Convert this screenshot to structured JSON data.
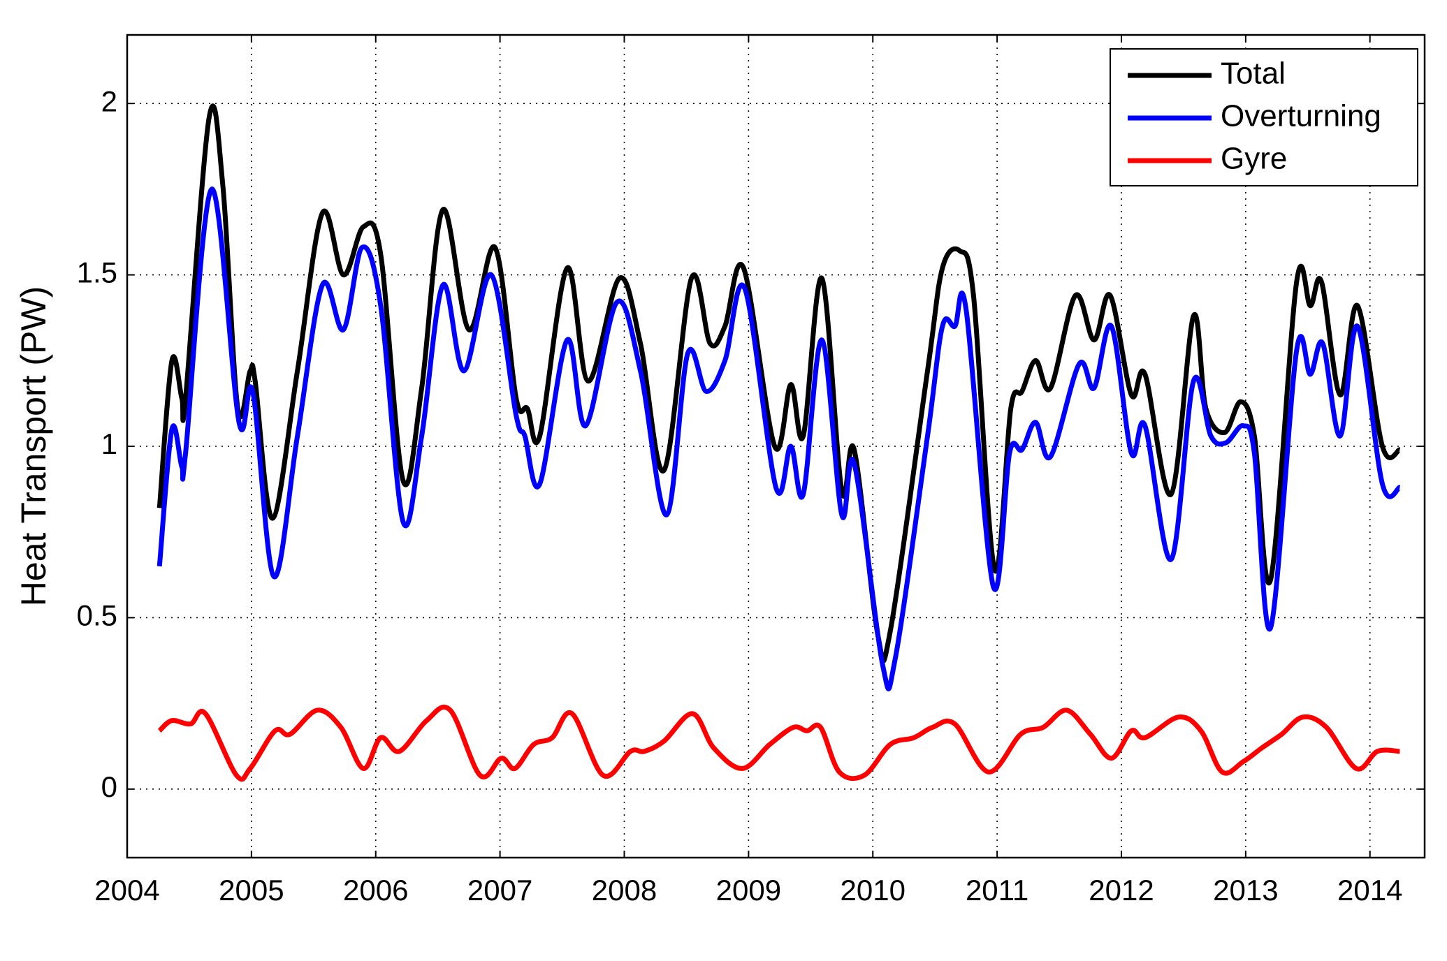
{
  "chart_data": {
    "type": "line",
    "y_label": "Heat Transport (PW)",
    "xlim": [
      2004,
      2014.44
    ],
    "xticks": [
      2004,
      2005,
      2006,
      2007,
      2008,
      2009,
      2010,
      2011,
      2012,
      2013,
      2014
    ],
    "ylim": [
      -0.2,
      2.2
    ],
    "yticks": [
      0,
      0.5,
      1,
      1.5,
      2
    ],
    "grid": true,
    "legend": "upper right",
    "series": [
      {
        "name": "Total",
        "color": "#000000",
        "x": [
          2004.26,
          2004.36,
          2004.44,
          2004.47,
          2004.66,
          2004.77,
          2004.89,
          2004.99,
          2005.03,
          2005.17,
          2005.37,
          2005.57,
          2005.74,
          2005.9,
          2006.04,
          2006.22,
          2006.37,
          2006.54,
          2006.75,
          2006.96,
          2007.13,
          2007.22,
          2007.32,
          2007.54,
          2007.71,
          2007.96,
          2008.13,
          2008.32,
          2008.54,
          2008.69,
          2008.81,
          2008.96,
          2009.21,
          2009.34,
          2009.44,
          2009.59,
          2009.75,
          2009.85,
          2010.04,
          2010.14,
          2010.44,
          2010.56,
          2010.7,
          2010.81,
          2010.98,
          2011.11,
          2011.2,
          2011.31,
          2011.43,
          2011.63,
          2011.78,
          2011.91,
          2012.08,
          2012.19,
          2012.4,
          2012.58,
          2012.68,
          2012.83,
          2012.96,
          2013.07,
          2013.2,
          2013.41,
          2013.52,
          2013.61,
          2013.76,
          2013.9,
          2014.1,
          2014.24
        ],
        "values": [
          0.82,
          1.25,
          1.14,
          1.14,
          1.96,
          1.76,
          1.11,
          1.22,
          1.19,
          0.79,
          1.22,
          1.68,
          1.5,
          1.64,
          1.56,
          0.9,
          1.17,
          1.69,
          1.34,
          1.58,
          1.14,
          1.11,
          1.03,
          1.52,
          1.19,
          1.49,
          1.3,
          0.93,
          1.49,
          1.3,
          1.35,
          1.52,
          1.0,
          1.18,
          1.03,
          1.49,
          0.87,
          0.99,
          0.45,
          0.46,
          1.22,
          1.52,
          1.57,
          1.44,
          0.64,
          1.11,
          1.16,
          1.25,
          1.17,
          1.44,
          1.31,
          1.44,
          1.15,
          1.21,
          0.86,
          1.38,
          1.11,
          1.04,
          1.13,
          1.03,
          0.61,
          1.48,
          1.41,
          1.48,
          1.15,
          1.41,
          1.0,
          0.99
        ]
      },
      {
        "name": "Overturning",
        "color": "#0000ff",
        "x": [
          2004.26,
          2004.36,
          2004.44,
          2004.47,
          2004.68,
          2004.9,
          2005.01,
          2005.18,
          2005.37,
          2005.57,
          2005.74,
          2005.89,
          2006.04,
          2006.22,
          2006.37,
          2006.54,
          2006.71,
          2006.93,
          2007.13,
          2007.2,
          2007.32,
          2007.54,
          2007.69,
          2007.94,
          2008.13,
          2008.34,
          2008.51,
          2008.66,
          2008.81,
          2008.97,
          2009.22,
          2009.34,
          2009.44,
          2009.59,
          2009.75,
          2009.85,
          2010.08,
          2010.18,
          2010.44,
          2010.56,
          2010.66,
          2010.75,
          2010.97,
          2011.1,
          2011.2,
          2011.31,
          2011.43,
          2011.66,
          2011.78,
          2011.92,
          2012.08,
          2012.19,
          2012.4,
          2012.58,
          2012.72,
          2012.84,
          2012.98,
          2013.07,
          2013.2,
          2013.41,
          2013.52,
          2013.62,
          2013.76,
          2013.9,
          2014.1,
          2014.24
        ],
        "values": [
          0.65,
          1.05,
          0.94,
          0.98,
          1.75,
          1.07,
          1.16,
          0.62,
          1.03,
          1.47,
          1.34,
          1.58,
          1.41,
          0.78,
          1.03,
          1.47,
          1.22,
          1.5,
          1.09,
          1.03,
          0.89,
          1.31,
          1.06,
          1.42,
          1.22,
          0.8,
          1.27,
          1.16,
          1.25,
          1.46,
          0.88,
          1.0,
          0.86,
          1.31,
          0.8,
          0.95,
          0.36,
          0.38,
          1.03,
          1.35,
          1.35,
          1.4,
          0.59,
          0.98,
          0.99,
          1.07,
          0.97,
          1.24,
          1.17,
          1.35,
          0.98,
          1.06,
          0.67,
          1.19,
          1.03,
          1.01,
          1.06,
          0.98,
          0.47,
          1.28,
          1.21,
          1.3,
          1.03,
          1.35,
          0.89,
          0.88
        ]
      },
      {
        "name": "Gyre",
        "color": "#ff0000",
        "x": [
          2004.26,
          2004.36,
          2004.51,
          2004.63,
          2004.88,
          2004.99,
          2005.19,
          2005.31,
          2005.53,
          2005.72,
          2005.9,
          2006.04,
          2006.19,
          2006.41,
          2006.6,
          2006.84,
          2007.01,
          2007.12,
          2007.27,
          2007.42,
          2007.58,
          2007.83,
          2008.05,
          2008.16,
          2008.32,
          2008.55,
          2008.72,
          2008.95,
          2009.17,
          2009.36,
          2009.47,
          2009.58,
          2009.73,
          2009.93,
          2010.14,
          2010.33,
          2010.48,
          2010.66,
          2010.93,
          2011.19,
          2011.37,
          2011.56,
          2011.75,
          2011.92,
          2012.08,
          2012.19,
          2012.46,
          2012.64,
          2012.81,
          2012.98,
          2013.13,
          2013.29,
          2013.46,
          2013.65,
          2013.89,
          2014.06,
          2014.24
        ],
        "values": [
          0.17,
          0.2,
          0.19,
          0.22,
          0.04,
          0.06,
          0.17,
          0.16,
          0.23,
          0.18,
          0.06,
          0.15,
          0.11,
          0.2,
          0.23,
          0.04,
          0.09,
          0.06,
          0.13,
          0.15,
          0.22,
          0.04,
          0.11,
          0.11,
          0.14,
          0.22,
          0.12,
          0.06,
          0.13,
          0.18,
          0.17,
          0.18,
          0.05,
          0.04,
          0.13,
          0.15,
          0.18,
          0.19,
          0.05,
          0.16,
          0.18,
          0.23,
          0.16,
          0.09,
          0.17,
          0.15,
          0.21,
          0.17,
          0.05,
          0.08,
          0.12,
          0.16,
          0.21,
          0.18,
          0.06,
          0.11,
          0.11
        ]
      }
    ]
  }
}
